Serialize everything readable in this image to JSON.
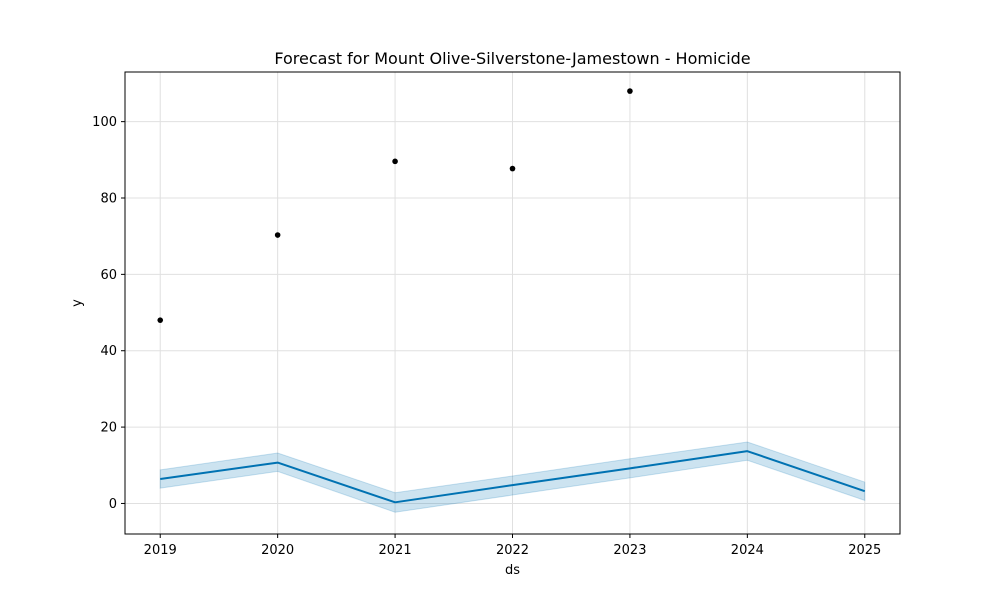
{
  "chart_data": {
    "type": "line",
    "title": "Forecast for Mount Olive-Silverstone-Jamestown - Homicide",
    "xlabel": "ds",
    "ylabel": "y",
    "x_ticks": [
      "2019",
      "2020",
      "2021",
      "2022",
      "2023",
      "2024",
      "2025"
    ],
    "y_ticks": [
      "0",
      "20",
      "40",
      "60",
      "80",
      "100"
    ],
    "xlim": [
      2018.7,
      2025.3
    ],
    "ylim": [
      -8,
      113
    ],
    "grid": true,
    "observed": {
      "x": [
        2019,
        2020,
        2021,
        2022,
        2023
      ],
      "y": [
        48,
        70.3,
        89.6,
        87.7,
        108
      ]
    },
    "forecast": {
      "x": [
        2019,
        2020,
        2021,
        2022,
        2023,
        2024,
        2025
      ],
      "yhat": [
        6.4,
        10.7,
        0.3,
        4.8,
        9.2,
        13.7,
        3.2
      ],
      "yhat_lower": [
        4.0,
        8.4,
        -2.3,
        2.2,
        6.7,
        11.3,
        0.8
      ],
      "yhat_upper": [
        8.8,
        13.2,
        2.8,
        7.2,
        11.7,
        16.1,
        5.6
      ]
    },
    "colors": {
      "forecast_line": "#0072B2",
      "interval_fill": "#0072B2",
      "observed_points": "#000000",
      "grid": "#e0e0e0",
      "axes": "#000000"
    }
  }
}
